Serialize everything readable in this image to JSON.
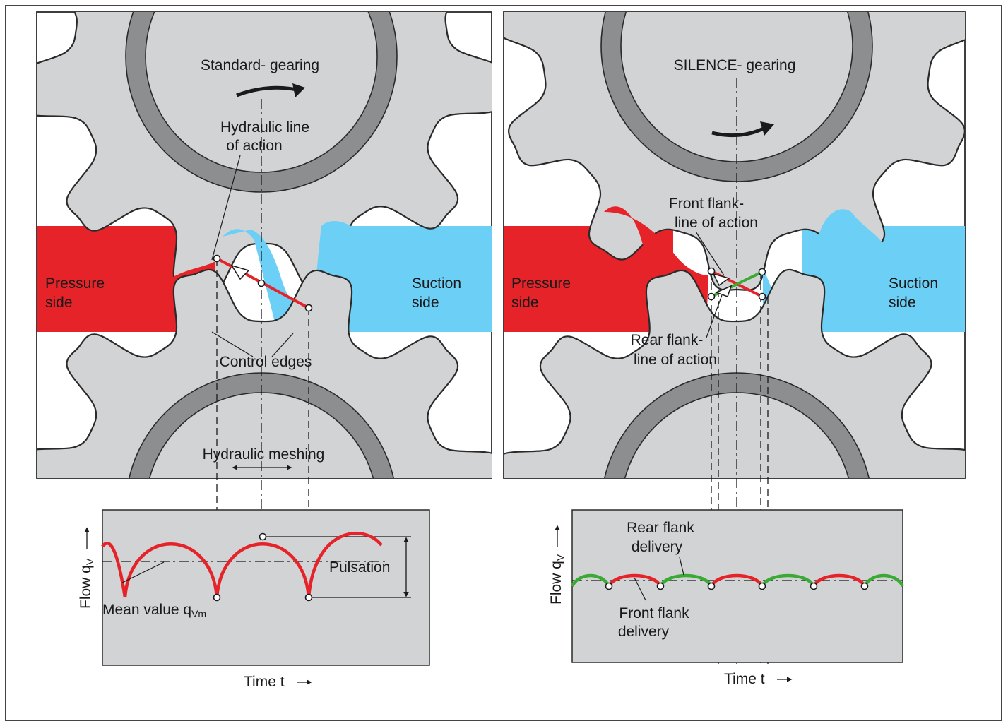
{
  "left_panel": {
    "title": "Standard- gearing",
    "hydraulic_line_label": [
      "Hydraulic line",
      "of action"
    ],
    "pressure_label": [
      "Pressure",
      "side"
    ],
    "suction_label": [
      "Suction",
      "side"
    ],
    "control_edges_label": "Control edges",
    "meshing_label": "Hydraulic meshing"
  },
  "right_panel": {
    "title": "SILENCE- gearing",
    "front_flank_label": [
      "Front flank-",
      "line of action"
    ],
    "rear_flank_label": [
      "Rear flank-",
      "line of action"
    ],
    "pressure_label": [
      "Pressure",
      "side"
    ],
    "suction_label": [
      "Suction",
      "side"
    ]
  },
  "left_plot": {
    "y_axis": "Flow q",
    "y_sub": "V",
    "x_axis": "Time t",
    "mean_label": "Mean value q",
    "mean_sub": "Vm",
    "pulsation_label": "Pulsation"
  },
  "right_plot": {
    "y_axis": "Flow q",
    "y_sub": "V",
    "x_axis": "Time t",
    "rear_delivery_label": [
      "Rear flank",
      "delivery"
    ],
    "front_delivery_label": [
      "Front flank",
      "delivery"
    ]
  },
  "colors": {
    "pressure": "#e52329",
    "suction": "#6ccff6",
    "gear": "#d2d3d5",
    "hub": "#8d8e90",
    "front_flank": "#e52329",
    "rear_flank": "#3aaa35"
  }
}
